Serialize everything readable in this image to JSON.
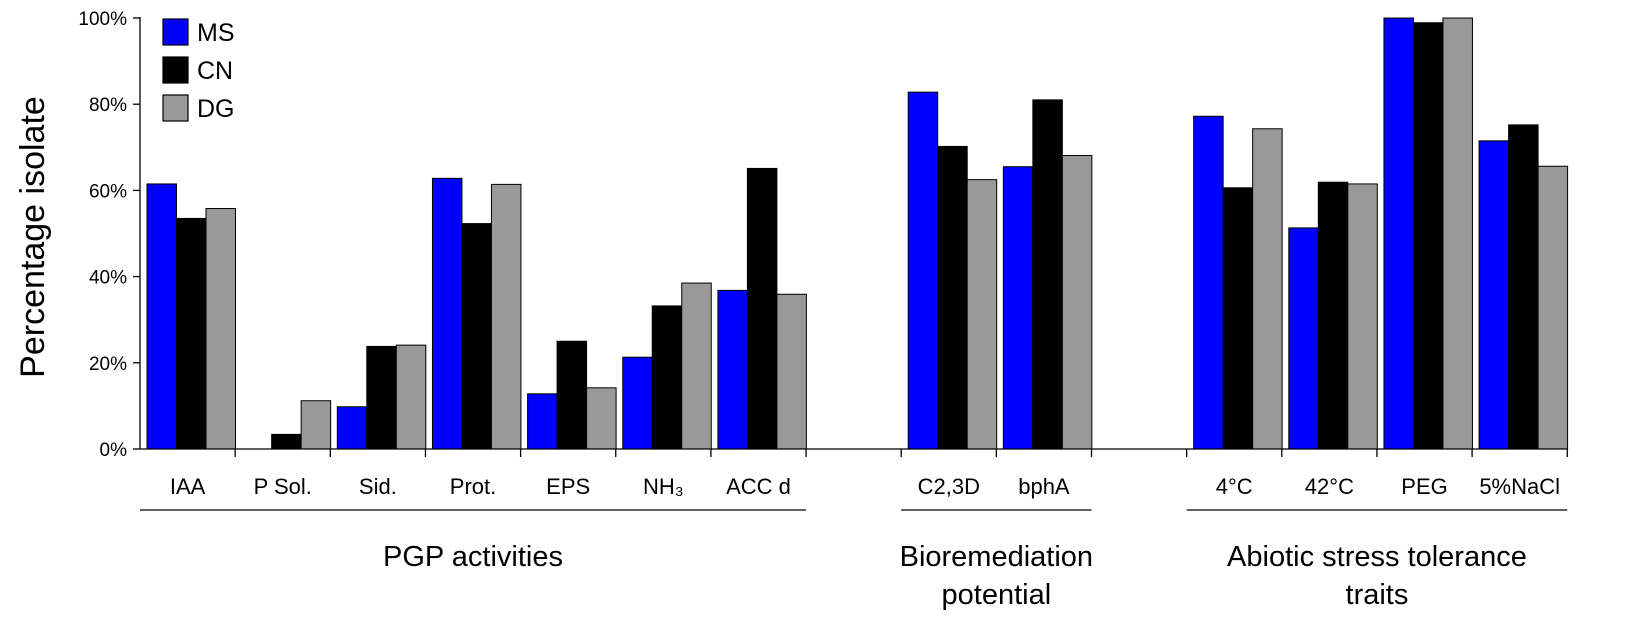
{
  "chart_data": {
    "type": "bar",
    "ylabel": "Percentage isolate",
    "xlabel": "",
    "ylim": [
      0,
      100
    ],
    "yticks": [
      "0%",
      "20%",
      "40%",
      "60%",
      "80%",
      "100%"
    ],
    "ytick_values": [
      0,
      20,
      40,
      60,
      80,
      100
    ],
    "legend_position": "top-left",
    "grid": false,
    "categories": [
      "IAA",
      "P Sol.",
      "Sid.",
      "Prot.",
      "EPS",
      "NH₃",
      "ACC d",
      "",
      "C2,3D",
      "bphA",
      "",
      "4°C",
      "42°C",
      "PEG",
      "5%NaCl"
    ],
    "series": [
      {
        "name": "MS",
        "color": "#0000FF",
        "values": [
          61.5,
          null,
          9.8,
          62.8,
          12.8,
          21.3,
          36.8,
          null,
          82.8,
          65.5,
          null,
          77.2,
          51.3,
          100,
          71.5
        ]
      },
      {
        "name": "CN",
        "color": "#000000",
        "values": [
          53.5,
          3.4,
          23.8,
          52.3,
          25.0,
          33.2,
          65.1,
          null,
          70.2,
          81.0,
          null,
          60.6,
          61.9,
          98.9,
          75.2
        ]
      },
      {
        "name": "DG",
        "color": "#999999",
        "values": [
          55.8,
          11.2,
          24.1,
          61.4,
          14.2,
          38.5,
          35.9,
          null,
          62.5,
          68.1,
          null,
          74.3,
          61.5,
          100,
          65.6
        ]
      }
    ],
    "groups": [
      {
        "label_lines": [
          "PGP activities"
        ],
        "categories": [
          "IAA",
          "P Sol.",
          "Sid.",
          "Prot.",
          "EPS",
          "NH₃",
          "ACC d"
        ]
      },
      {
        "label_lines": [
          "Bioremediation",
          "potential"
        ],
        "categories": [
          "C2,3D",
          "bphA"
        ]
      },
      {
        "label_lines": [
          "Abiotic stress tolerance",
          "traits"
        ],
        "categories": [
          "4°C",
          "42°C",
          "PEG",
          "5%NaCl"
        ]
      }
    ]
  }
}
